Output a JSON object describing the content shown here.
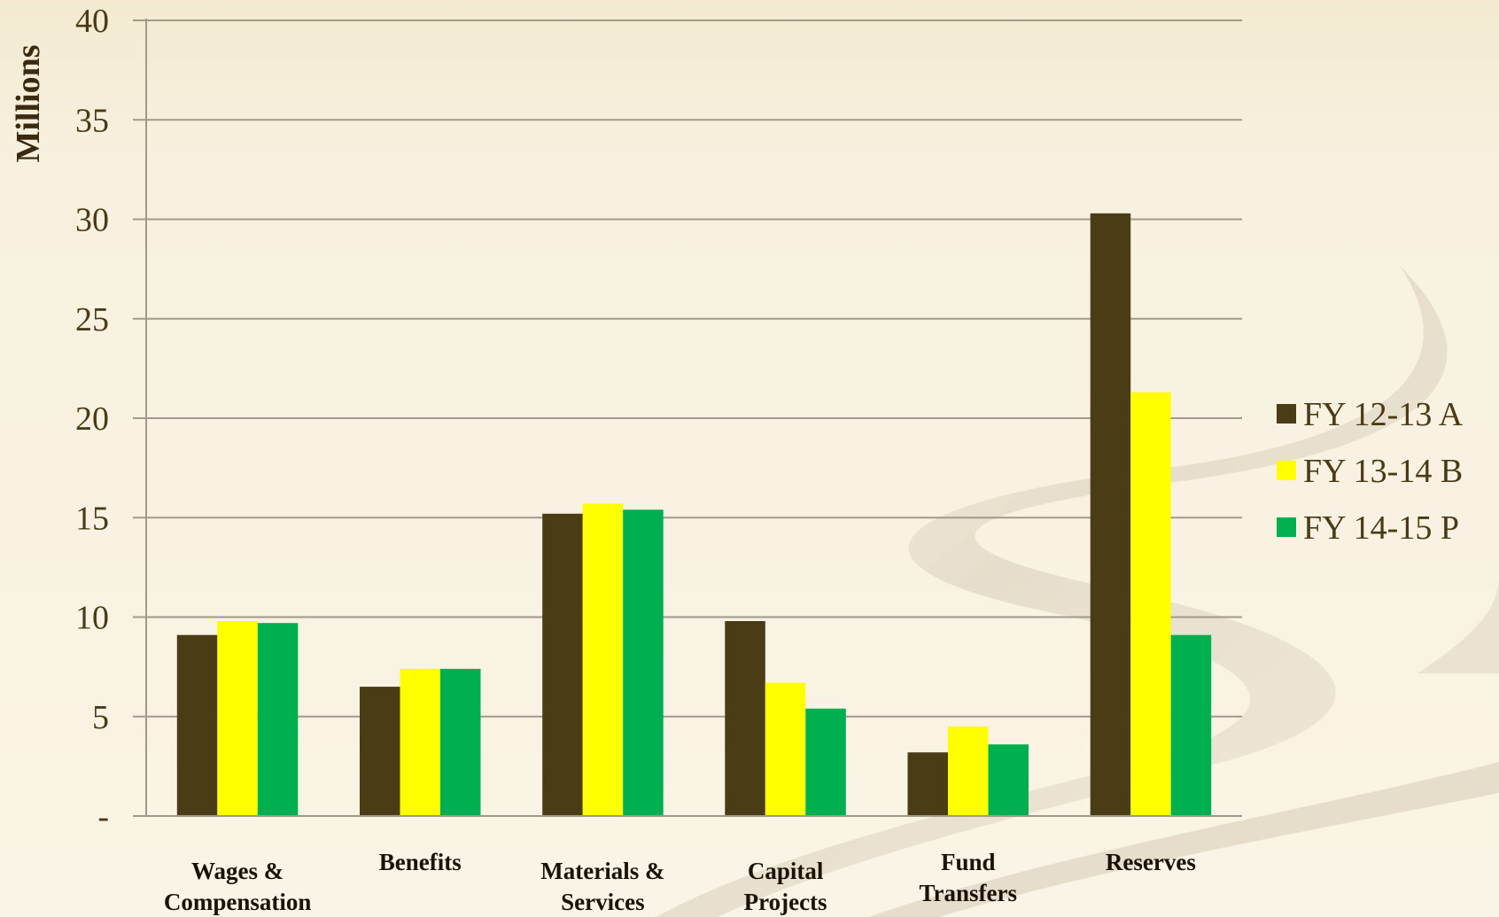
{
  "chart_data": {
    "type": "bar",
    "title": "",
    "xlabel": "",
    "ylabel": "Millions",
    "ylim": [
      0,
      40
    ],
    "yticks": [
      0,
      5,
      10,
      15,
      20,
      25,
      30,
      35,
      40
    ],
    "ytick_labels": [
      "-",
      "5",
      "10",
      "15",
      "20",
      "25",
      "30",
      "35",
      "40"
    ],
    "grid": true,
    "legend_position": "right",
    "categories": [
      [
        "Wages &",
        "Compensation"
      ],
      [
        "Benefits"
      ],
      [
        "Materials &",
        "Services"
      ],
      [
        "Capital",
        "Projects"
      ],
      [
        "Fund",
        "Transfers"
      ],
      [
        "Reserves"
      ]
    ],
    "series": [
      {
        "name": "FY 12-13 A",
        "color": "#4a3c14",
        "values": [
          9.1,
          6.5,
          15.2,
          9.8,
          3.2,
          30.3
        ]
      },
      {
        "name": "FY 13-14 B",
        "color": "#ffff00",
        "values": [
          9.8,
          7.4,
          15.7,
          6.7,
          4.5,
          21.3
        ]
      },
      {
        "name": "FY 14-15 P",
        "color": "#00b050",
        "values": [
          9.7,
          7.4,
          15.4,
          5.4,
          3.6,
          9.1
        ]
      }
    ]
  }
}
